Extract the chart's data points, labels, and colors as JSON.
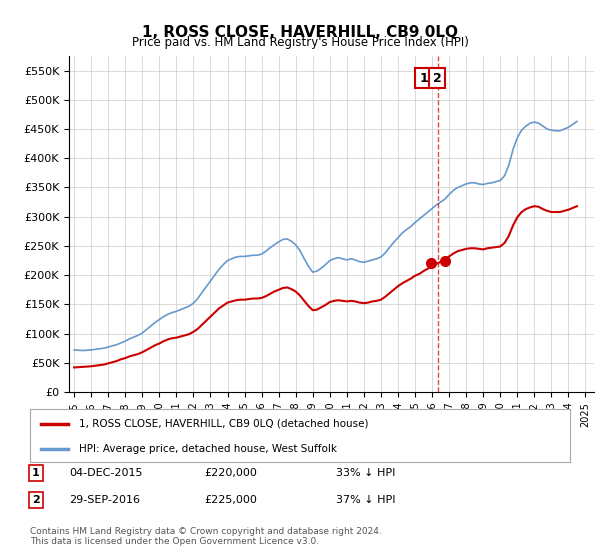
{
  "title": "1, ROSS CLOSE, HAVERHILL, CB9 0LQ",
  "subtitle": "Price paid vs. HM Land Registry's House Price Index (HPI)",
  "ylabel_ticks": [
    "£0",
    "£50K",
    "£100K",
    "£150K",
    "£200K",
    "£250K",
    "£300K",
    "£350K",
    "£400K",
    "£450K",
    "£500K",
    "£550K"
  ],
  "ylim": [
    0,
    575000
  ],
  "xlim_start": 1995.0,
  "xlim_end": 2025.5,
  "xticks": [
    1995,
    1996,
    1997,
    1998,
    1999,
    2000,
    2001,
    2002,
    2003,
    2004,
    2005,
    2006,
    2007,
    2008,
    2009,
    2010,
    2011,
    2012,
    2013,
    2014,
    2015,
    2016,
    2017,
    2018,
    2019,
    2020,
    2021,
    2022,
    2023,
    2024,
    2025
  ],
  "hpi_color": "#6699cc",
  "price_color": "#cc0000",
  "vline_color": "#cc0000",
  "vline_style": "dashed",
  "transaction1_x": 2015.92,
  "transaction1_y": 220000,
  "transaction2_x": 2016.75,
  "transaction2_y": 225000,
  "transaction1_label": "1",
  "transaction2_label": "2",
  "legend_line1": "1, ROSS CLOSE, HAVERHILL, CB9 0LQ (detached house)",
  "legend_line2": "HPI: Average price, detached house, West Suffolk",
  "table_row1": "1    04-DEC-2015         £220,000        33% ↓ HPI",
  "table_row2": "2    29-SEP-2016         £225,000        37% ↓ HPI",
  "footnote": "Contains HM Land Registry data © Crown copyright and database right 2024.\nThis data is licensed under the Open Government Licence v3.0.",
  "bg_color": "#ffffff",
  "grid_color": "#cccccc",
  "hpi_data_x": [
    1995.0,
    1995.25,
    1995.5,
    1995.75,
    1996.0,
    1996.25,
    1996.5,
    1996.75,
    1997.0,
    1997.25,
    1997.5,
    1997.75,
    1998.0,
    1998.25,
    1998.5,
    1998.75,
    1999.0,
    1999.25,
    1999.5,
    1999.75,
    2000.0,
    2000.25,
    2000.5,
    2000.75,
    2001.0,
    2001.25,
    2001.5,
    2001.75,
    2002.0,
    2002.25,
    2002.5,
    2002.75,
    2003.0,
    2003.25,
    2003.5,
    2003.75,
    2004.0,
    2004.25,
    2004.5,
    2004.75,
    2005.0,
    2005.25,
    2005.5,
    2005.75,
    2006.0,
    2006.25,
    2006.5,
    2006.75,
    2007.0,
    2007.25,
    2007.5,
    2007.75,
    2008.0,
    2008.25,
    2008.5,
    2008.75,
    2009.0,
    2009.25,
    2009.5,
    2009.75,
    2010.0,
    2010.25,
    2010.5,
    2010.75,
    2011.0,
    2011.25,
    2011.5,
    2011.75,
    2012.0,
    2012.25,
    2012.5,
    2012.75,
    2013.0,
    2013.25,
    2013.5,
    2013.75,
    2014.0,
    2014.25,
    2014.5,
    2014.75,
    2015.0,
    2015.25,
    2015.5,
    2015.75,
    2016.0,
    2016.25,
    2016.5,
    2016.75,
    2017.0,
    2017.25,
    2017.5,
    2017.75,
    2018.0,
    2018.25,
    2018.5,
    2018.75,
    2019.0,
    2019.25,
    2019.5,
    2019.75,
    2020.0,
    2020.25,
    2020.5,
    2020.75,
    2021.0,
    2021.25,
    2021.5,
    2021.75,
    2022.0,
    2022.25,
    2022.5,
    2022.75,
    2023.0,
    2023.25,
    2023.5,
    2023.75,
    2024.0,
    2024.25,
    2024.5
  ],
  "hpi_data_y": [
    72000,
    71500,
    71000,
    71500,
    72000,
    73000,
    74000,
    75000,
    77000,
    79000,
    81000,
    84000,
    87000,
    91000,
    94000,
    97000,
    101000,
    107000,
    113000,
    119000,
    124000,
    129000,
    133000,
    136000,
    138000,
    141000,
    144000,
    147000,
    152000,
    160000,
    170000,
    180000,
    190000,
    200000,
    210000,
    218000,
    225000,
    228000,
    231000,
    232000,
    232000,
    233000,
    234000,
    234000,
    236000,
    241000,
    247000,
    252000,
    257000,
    261000,
    262000,
    258000,
    252000,
    242000,
    228000,
    215000,
    205000,
    207000,
    212000,
    218000,
    225000,
    228000,
    230000,
    228000,
    226000,
    228000,
    226000,
    223000,
    222000,
    224000,
    226000,
    228000,
    231000,
    238000,
    247000,
    256000,
    264000,
    272000,
    278000,
    283000,
    290000,
    296000,
    302000,
    308000,
    314000,
    320000,
    325000,
    330000,
    338000,
    345000,
    350000,
    353000,
    356000,
    358000,
    358000,
    356000,
    355000,
    357000,
    358000,
    360000,
    362000,
    370000,
    388000,
    415000,
    435000,
    448000,
    455000,
    460000,
    462000,
    460000,
    455000,
    450000,
    448000,
    447000,
    447000,
    450000,
    453000,
    458000,
    463000
  ],
  "price_data_x": [
    1995.0,
    1995.25,
    1995.5,
    1995.75,
    1996.0,
    1996.25,
    1996.5,
    1996.75,
    1997.0,
    1997.25,
    1997.5,
    1997.75,
    1998.0,
    1998.25,
    1998.5,
    1998.75,
    1999.0,
    1999.25,
    1999.5,
    1999.75,
    2000.0,
    2000.25,
    2000.5,
    2000.75,
    2001.0,
    2001.25,
    2001.5,
    2001.75,
    2002.0,
    2002.25,
    2002.5,
    2002.75,
    2003.0,
    2003.25,
    2003.5,
    2003.75,
    2004.0,
    2004.25,
    2004.5,
    2004.75,
    2005.0,
    2005.25,
    2005.5,
    2005.75,
    2006.0,
    2006.25,
    2006.5,
    2006.75,
    2007.0,
    2007.25,
    2007.5,
    2007.75,
    2008.0,
    2008.25,
    2008.5,
    2008.75,
    2009.0,
    2009.25,
    2009.5,
    2009.75,
    2010.0,
    2010.25,
    2010.5,
    2010.75,
    2011.0,
    2011.25,
    2011.5,
    2011.75,
    2012.0,
    2012.25,
    2012.5,
    2012.75,
    2013.0,
    2013.25,
    2013.5,
    2013.75,
    2014.0,
    2014.25,
    2014.5,
    2014.75,
    2015.0,
    2015.25,
    2015.5,
    2015.75,
    2016.0,
    2016.25,
    2016.5,
    2016.75,
    2017.0,
    2017.25,
    2017.5,
    2017.75,
    2018.0,
    2018.25,
    2018.5,
    2018.75,
    2019.0,
    2019.25,
    2019.5,
    2019.75,
    2020.0,
    2020.25,
    2020.5,
    2020.75,
    2021.0,
    2021.25,
    2021.5,
    2021.75,
    2022.0,
    2022.25,
    2022.5,
    2022.75,
    2023.0,
    2023.25,
    2023.5,
    2023.75,
    2024.0,
    2024.25,
    2024.5
  ],
  "price_data_y": [
    42000,
    42500,
    43000,
    43500,
    44000,
    45000,
    46000,
    47000,
    49000,
    51000,
    53000,
    56000,
    58000,
    61000,
    63000,
    65000,
    68000,
    72000,
    76000,
    80000,
    83000,
    87000,
    90000,
    92000,
    93000,
    95000,
    97000,
    99000,
    103000,
    108000,
    115000,
    122000,
    129000,
    136000,
    143000,
    148000,
    153000,
    155000,
    157000,
    158000,
    158000,
    159000,
    160000,
    160000,
    161000,
    164000,
    168000,
    172000,
    175000,
    178000,
    179000,
    176000,
    172000,
    165000,
    156000,
    147000,
    140000,
    141000,
    145000,
    149000,
    154000,
    156000,
    157000,
    156000,
    155000,
    156000,
    155000,
    153000,
    152000,
    153000,
    155000,
    156000,
    158000,
    163000,
    169000,
    175000,
    181000,
    186000,
    190000,
    194000,
    199000,
    202000,
    207000,
    211000,
    215000,
    219000,
    223000,
    227000,
    232000,
    237000,
    241000,
    243000,
    245000,
    246000,
    246000,
    245000,
    244000,
    246000,
    247000,
    248000,
    249000,
    255000,
    267000,
    285000,
    299000,
    308000,
    313000,
    316000,
    318000,
    317000,
    313000,
    310000,
    308000,
    308000,
    308000,
    310000,
    312000,
    315000,
    318000
  ]
}
